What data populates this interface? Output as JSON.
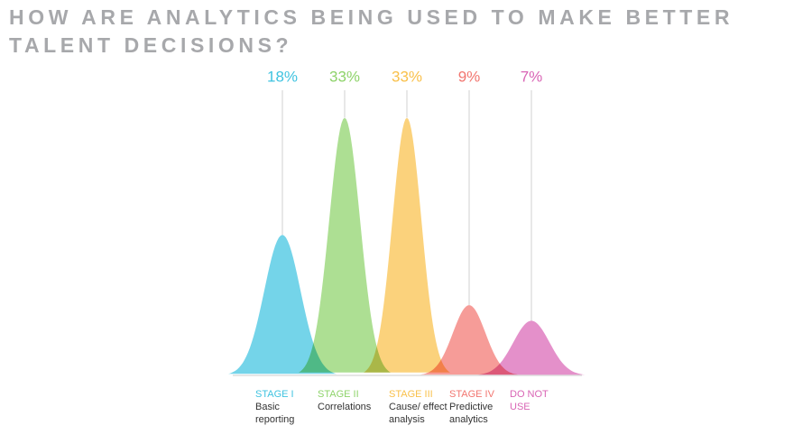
{
  "chart_data": {
    "type": "bell",
    "title": "HOW ARE ANALYTICS BEING USED TO MAKE BETTER TALENT DECISIONS?",
    "categories": [
      "STAGE I",
      "STAGE II",
      "STAGE III",
      "STAGE IV",
      "DO NOT USE"
    ],
    "descriptions": [
      "Basic reporting",
      "Correlations",
      "Cause/ effect analysis",
      "Predictive analytics",
      null
    ],
    "values": [
      18,
      33,
      33,
      9,
      7
    ],
    "value_labels": [
      "18%",
      "33%",
      "33%",
      "9%",
      "7%"
    ],
    "colors": [
      "#3fc3e0",
      "#8ed36a",
      "#f9c04a",
      "#f27670",
      "#d965b5"
    ]
  }
}
